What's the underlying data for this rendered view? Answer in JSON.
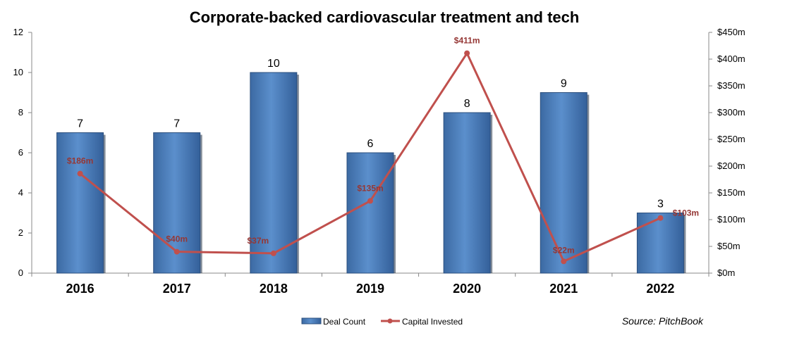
{
  "chart_data": {
    "type": "bar",
    "title": "Corporate-backed cardiovascular treatment and tech",
    "categories": [
      "2016",
      "2017",
      "2018",
      "2019",
      "2020",
      "2021",
      "2022"
    ],
    "series": [
      {
        "name": "Deal Count",
        "type": "bar",
        "axis": "left",
        "values": [
          7,
          7,
          10,
          6,
          8,
          9,
          3
        ],
        "labels": [
          "7",
          "7",
          "10",
          "6",
          "8",
          "9",
          "3"
        ],
        "color": "#4f81bd"
      },
      {
        "name": "Capital Invested",
        "type": "line",
        "axis": "right",
        "values": [
          186,
          40,
          37,
          135,
          411,
          22,
          103
        ],
        "labels": [
          "$186m",
          "$40m",
          "$37m",
          "$135m",
          "$411m",
          "$22m",
          "$103m"
        ],
        "color": "#c0504d"
      }
    ],
    "y_left": {
      "range": [
        0,
        12
      ],
      "ticks": [
        0,
        2,
        4,
        6,
        8,
        10,
        12
      ],
      "tick_labels": [
        "0",
        "2",
        "4",
        "6",
        "8",
        "10",
        "12"
      ]
    },
    "y_right": {
      "range": [
        0,
        450
      ],
      "ticks": [
        0,
        50,
        100,
        150,
        200,
        250,
        300,
        350,
        400,
        450
      ],
      "tick_labels": [
        "$0m",
        "$50m",
        "$100m",
        "$150m",
        "$200m",
        "$250m",
        "$300m",
        "$350m",
        "$400m",
        "$450m"
      ]
    },
    "grid": false,
    "legend": "bottom-center",
    "source": "Source: PitchBook"
  }
}
